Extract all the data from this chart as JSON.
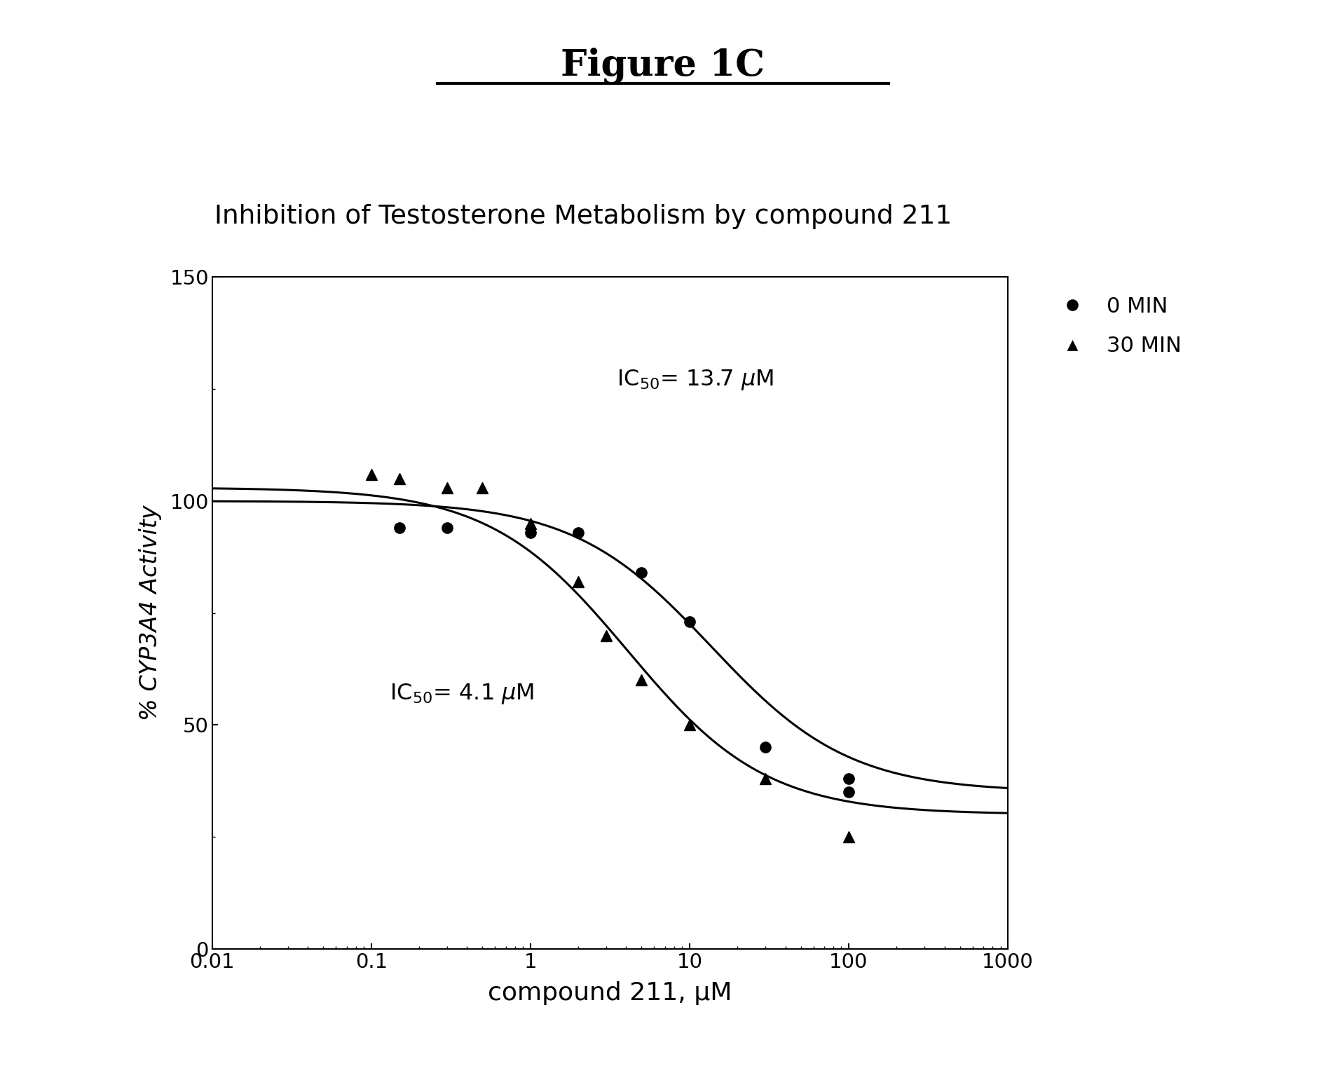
{
  "title_figure": "Figure 1C",
  "title_plot": "Inhibition of Testosterone Metabolism by compound 211",
  "xlabel": "compound 211, μM",
  "ylabel": "% CYP3A4 Activity",
  "ylim": [
    0,
    150
  ],
  "yticks": [
    0,
    50,
    100,
    150
  ],
  "xtick_vals": [
    0.01,
    0.1,
    1,
    10,
    100,
    1000
  ],
  "xtick_labels": [
    "0.01",
    "0.1",
    "1",
    "10",
    "100",
    "1000"
  ],
  "dots_x": [
    0.15,
    0.3,
    1.0,
    2.0,
    5.0,
    10.0,
    30.0,
    100.0,
    100.0
  ],
  "dots_y": [
    94,
    94,
    93,
    93,
    84,
    73,
    45,
    38,
    35
  ],
  "tri_x": [
    0.1,
    0.15,
    0.3,
    0.5,
    1.0,
    2.0,
    3.0,
    5.0,
    10.0,
    30.0,
    100.0
  ],
  "tri_y": [
    106,
    105,
    103,
    103,
    95,
    82,
    70,
    60,
    50,
    38,
    25
  ],
  "ic50_dots": 13.7,
  "ic50_tri": 4.1,
  "top_dots": 100,
  "bottom_dots": 35,
  "top_tri": 103,
  "bottom_tri": 30,
  "legend_label_dots": "0 MIN",
  "legend_label_tri": "30 MIN",
  "fig_width": 18.92,
  "fig_height": 15.21,
  "dpi": 100
}
